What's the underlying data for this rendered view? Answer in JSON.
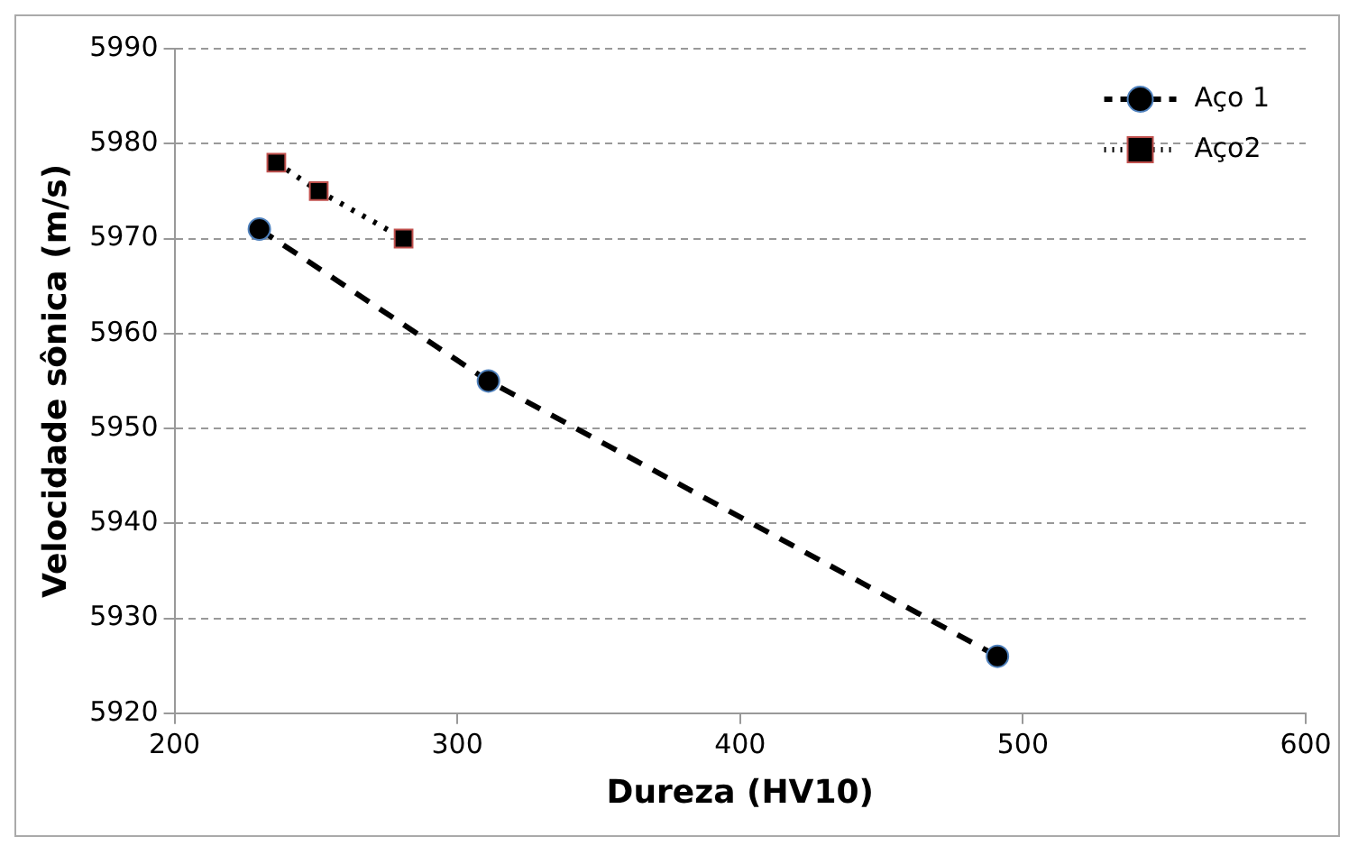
{
  "chart_data": {
    "type": "line",
    "xlabel": "Dureza (HV10)",
    "ylabel": "Velocidade sônica (m/s)",
    "xlim": [
      200,
      600
    ],
    "xticks": [
      200,
      300,
      400,
      500,
      600
    ],
    "ylim": [
      5920,
      5990
    ],
    "yticks": [
      5920,
      5930,
      5940,
      5950,
      5960,
      5970,
      5980,
      5990
    ],
    "grid": "y",
    "legend": "top right",
    "series": [
      {
        "name": "Aço 1",
        "color": "#000000",
        "x": [
          230,
          311,
          491
        ],
        "values": [
          5971,
          5955,
          5926
        ],
        "marker": "circle",
        "line_style": "dashed"
      },
      {
        "name": "Aço2",
        "color": "#000000",
        "x": [
          236,
          251,
          281
        ],
        "values": [
          5978,
          5975,
          5970
        ],
        "marker": "square",
        "line_style": "dotted"
      }
    ]
  }
}
